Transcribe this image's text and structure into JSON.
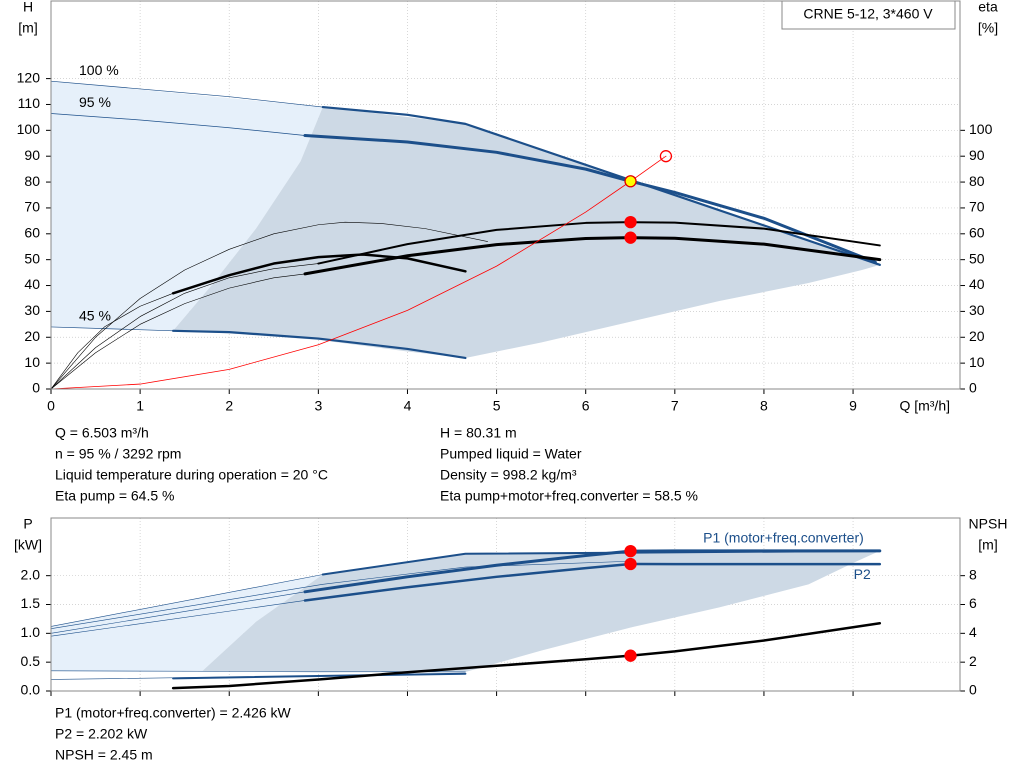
{
  "chart_data": [
    {
      "type": "line",
      "title": "CRNE 5-12, 3*460 V",
      "ylabel": [
        "H",
        "[m]"
      ],
      "y2label": [
        "eta",
        "[%]"
      ],
      "xlabel": "Q [m³/h]",
      "xlim": [
        0,
        10.2
      ],
      "xticks": [
        0,
        1,
        2,
        3,
        4,
        5,
        6,
        7,
        8,
        9
      ],
      "xtick_labels": true,
      "ylim": [
        0,
        150
      ],
      "yticks": [
        0,
        10,
        20,
        30,
        40,
        50,
        60,
        70,
        80,
        90,
        100,
        110,
        120
      ],
      "y2lim": [
        0,
        150
      ],
      "y2ticks": [
        0,
        10,
        20,
        30,
        40,
        50,
        60,
        70,
        80,
        90,
        100
      ],
      "grid": true,
      "series": [
        {
          "fill": "#e6f0fa",
          "x": [
            0,
            3.05,
            2.8,
            2.3,
            1.8,
            1.37,
            0
          ],
          "values": [
            119,
            109,
            88,
            62,
            40,
            22.5,
            24
          ]
        },
        {
          "fill": "#cdd9e5",
          "x": [
            1.37,
            1.8,
            2.3,
            2.8,
            3.05,
            4.65,
            9.3,
            9.1,
            8.5,
            7.5,
            6.5,
            5.5,
            4.65,
            4,
            3,
            2,
            1.37
          ],
          "values": [
            22.5,
            40,
            62,
            88,
            109,
            102.5,
            48,
            46,
            41,
            34,
            26,
            18,
            12,
            14.5,
            19,
            21.5,
            22.5
          ]
        },
        {
          "name": "100 %",
          "label_pos": "start",
          "color": "#1c4f8a",
          "width": 0.7,
          "x": [
            0,
            1,
            2,
            3.05
          ],
          "values": [
            119,
            116,
            113,
            109
          ]
        },
        {
          "color": "#1c4f8a",
          "width": 2.2,
          "x": [
            3.05,
            4,
            4.65,
            9.3
          ],
          "values": [
            109,
            106,
            102.5,
            48
          ]
        },
        {
          "name": "95 %",
          "label_pos": "start",
          "color": "#1c4f8a",
          "width": 0.7,
          "x": [
            0,
            1,
            2,
            2.85
          ],
          "values": [
            106.5,
            104,
            101,
            98
          ]
        },
        {
          "color": "#1c4f8a",
          "width": 3,
          "x": [
            2.85,
            4,
            5,
            6,
            6.503,
            7,
            8,
            9.25
          ],
          "values": [
            98,
            95.5,
            91.5,
            85,
            80.31,
            76,
            66,
            49
          ]
        },
        {
          "name": "45 %",
          "label_pos": "start",
          "color": "#1c4f8a",
          "width": 0.7,
          "x": [
            0,
            1.37
          ],
          "values": [
            24,
            22.5
          ]
        },
        {
          "color": "#1c4f8a",
          "width": 2.2,
          "x": [
            1.37,
            2,
            3,
            4,
            4.65
          ],
          "values": [
            22.5,
            22,
            19.5,
            15.5,
            12
          ]
        },
        {
          "color": "#000000",
          "width": 0.6,
          "x": [
            0,
            0.5,
            1,
            1.5,
            2,
            2.5,
            3,
            3.3,
            3.7,
            4.2,
            4.9
          ],
          "values": [
            0,
            20,
            35,
            46,
            54,
            60,
            63.5,
            64.5,
            64,
            62,
            57
          ]
        },
        {
          "color": "#000000",
          "width": 0.6,
          "x": [
            0,
            0.5,
            1,
            1.5,
            2,
            2.5,
            2.85
          ],
          "values": [
            0,
            14,
            25,
            33,
            39,
            43,
            44.5
          ]
        },
        {
          "color": "#000000",
          "width": 0.6,
          "x": [
            0,
            0.5,
            1,
            1.5,
            2,
            2.5,
            3
          ],
          "values": [
            0,
            16,
            28,
            37,
            43,
            46.5,
            48.5
          ]
        },
        {
          "color": "#000000",
          "width": 0.6,
          "x": [
            0,
            0.3,
            0.6,
            1,
            1.37
          ],
          "values": [
            0,
            14,
            24,
            32,
            37
          ]
        },
        {
          "color": "#000000",
          "width": 2,
          "x": [
            3,
            4,
            5,
            6,
            6.503,
            7,
            8,
            9.3
          ],
          "values": [
            48.5,
            56,
            61.5,
            64.2,
            64.5,
            64.3,
            62,
            55.5
          ]
        },
        {
          "color": "#000000",
          "width": 3,
          "x": [
            2.85,
            4,
            5,
            6,
            6.503,
            7,
            8,
            9.3
          ],
          "values": [
            44.5,
            51.5,
            55.8,
            58.2,
            58.5,
            58.3,
            56,
            50
          ]
        },
        {
          "color": "#000000",
          "width": 2.5,
          "x": [
            1.37,
            2,
            2.5,
            3,
            3.5,
            4,
            4.65
          ],
          "values": [
            37,
            44,
            48.5,
            51,
            52,
            50.5,
            45.5
          ]
        },
        {
          "color": "#ff0000",
          "width": 0.8,
          "x": [
            0,
            1,
            2,
            3,
            4,
            5,
            6,
            6.503,
            6.9
          ],
          "values": [
            0,
            1.9,
            7.6,
            17.1,
            30.4,
            47.5,
            68.4,
            80.31,
            90
          ]
        },
        {
          "marker": "circle",
          "color": "none",
          "stroke": "#ff0000",
          "x": [
            6.9
          ],
          "values": [
            90
          ]
        },
        {
          "marker": "circle",
          "color": "#ffff00",
          "stroke": "#e00000",
          "x": [
            6.503
          ],
          "values": [
            80.31
          ]
        },
        {
          "marker": "circle",
          "color": "#ff0000",
          "stroke": "#ff0000",
          "x": [
            6.503,
            6.503
          ],
          "values": [
            64.5,
            58.5
          ]
        }
      ],
      "info": [
        [
          "Q = 6.503 m³/h",
          "n = 95 % / 3292 rpm",
          "Liquid temperature during operation = 20 °C",
          "Eta pump = 64.5 %"
        ],
        [
          "H = 80.31 m",
          "Pumped liquid = Water",
          "Density = 998.2 kg/m³",
          "Eta pump+motor+freq.converter = 58.5 %"
        ]
      ]
    },
    {
      "type": "line",
      "ylabel": [
        "P",
        "[kW]"
      ],
      "y2label": [
        "NPSH",
        "[m]"
      ],
      "xlim": [
        0,
        10.2
      ],
      "xticks": [
        0,
        1,
        2,
        3,
        4,
        5,
        6,
        7,
        8,
        9
      ],
      "xtick_labels": false,
      "ylim": [
        0,
        3
      ],
      "yticks": [
        {
          "value": 0,
          "label": "0.0"
        },
        0.5,
        {
          "value": 1,
          "label": "1.0"
        },
        1.5,
        {
          "value": 2,
          "label": "2.0"
        }
      ],
      "y2lim": [
        0,
        12
      ],
      "y2ticks": [
        0,
        2,
        4,
        6,
        8
      ],
      "grid": true,
      "series": [
        {
          "fill": "#e6f0fa",
          "x": [
            0,
            3.05,
            2.3,
            1.7,
            0
          ],
          "values": [
            1.12,
            2.02,
            1.2,
            0.35,
            0.35
          ]
        },
        {
          "fill": "#cdd9e5",
          "x": [
            1.7,
            2.3,
            3.05,
            4.65,
            9.3,
            9.0,
            8.5,
            7.5,
            6.5,
            5.5,
            4.65,
            3,
            1.7
          ],
          "values": [
            0.35,
            1.2,
            2.02,
            2.38,
            2.43,
            2.22,
            1.85,
            1.45,
            1.1,
            0.7,
            0.33,
            0.32,
            0.35
          ]
        },
        {
          "color": "#1c4f8a",
          "width": 0.6,
          "x": [
            0,
            3.05
          ],
          "values": [
            1.12,
            2.02
          ]
        },
        {
          "color": "#1c4f8a",
          "width": 2,
          "x": [
            3.05,
            4.65,
            9.3
          ],
          "values": [
            2.02,
            2.38,
            2.43
          ]
        },
        {
          "color": "#1c4f8a",
          "width": 0.6,
          "x": [
            0,
            3.05,
            4.65,
            6.5
          ],
          "values": [
            1.08,
            1.85,
            2.15,
            2.25
          ]
        },
        {
          "color": "#1c4f8a",
          "width": 0.6,
          "x": [
            0,
            2.85
          ],
          "values": [
            1.0,
            1.72
          ]
        },
        {
          "name": "P1 (motor+freq.converter)",
          "label_pos": "above",
          "color": "#1c4f8a",
          "width": 3,
          "x": [
            2.85,
            4,
            5,
            6,
            6.503,
            7,
            8,
            9.3
          ],
          "values": [
            1.72,
            1.98,
            2.18,
            2.35,
            2.426,
            2.43,
            2.43,
            2.43
          ]
        },
        {
          "color": "#1c4f8a",
          "width": 0.6,
          "x": [
            0,
            2.85
          ],
          "values": [
            0.95,
            1.57
          ]
        },
        {
          "name": "P2",
          "label_pos": "below",
          "color": "#1c4f8a",
          "width": 2.5,
          "x": [
            2.85,
            4,
            5,
            6,
            6.503,
            7,
            8,
            9.3
          ],
          "values": [
            1.57,
            1.8,
            1.98,
            2.13,
            2.202,
            2.2,
            2.2,
            2.2
          ]
        },
        {
          "color": "#1c4f8a",
          "width": 0.6,
          "x": [
            0,
            4.65
          ],
          "values": [
            0.35,
            0.33
          ]
        },
        {
          "color": "#1c4f8a",
          "width": 0.6,
          "x": [
            0,
            4.65
          ],
          "values": [
            0.2,
            0.3
          ]
        },
        {
          "color": "#1c4f8a",
          "width": 2,
          "x": [
            1.37,
            4.65
          ],
          "values": [
            0.22,
            0.3
          ]
        },
        {
          "color": "#000000",
          "width": 2.5,
          "axis": "y2",
          "x": [
            1.37,
            2,
            3,
            4,
            5,
            6,
            6.503,
            7,
            8,
            9.3
          ],
          "values": [
            0.2,
            0.35,
            0.8,
            1.3,
            1.75,
            2.2,
            2.45,
            2.75,
            3.5,
            4.7
          ]
        },
        {
          "marker": "circle",
          "color": "#ff0000",
          "stroke": "#ff0000",
          "x": [
            6.503,
            6.503
          ],
          "values": [
            2.426,
            2.202
          ]
        },
        {
          "marker": "circle",
          "color": "#ff0000",
          "stroke": "#ff0000",
          "axis": "y2",
          "x": [
            6.503
          ],
          "values": [
            2.45
          ]
        }
      ],
      "info": [
        [
          "P1 (motor+freq.converter) = 2.426 kW",
          "P2 = 2.202 kW",
          "NPSH = 2.45 m"
        ]
      ]
    }
  ]
}
